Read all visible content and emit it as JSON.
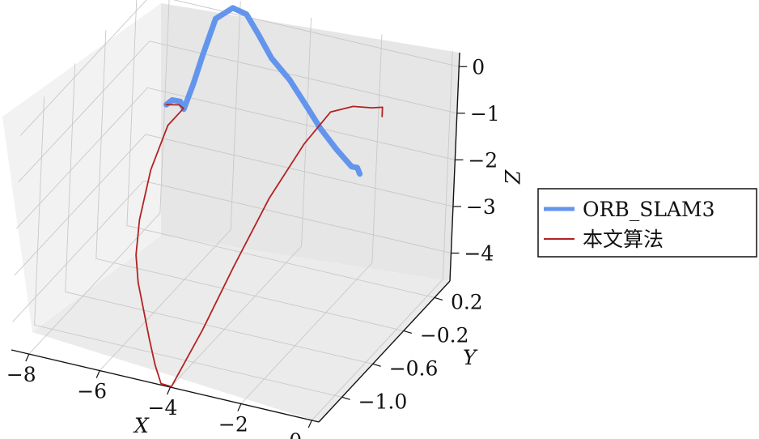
{
  "chart_data": {
    "type": "line3d",
    "xlabel": "X",
    "ylabel": "Y",
    "zlabel": "Z",
    "x_ticks": [
      "−8",
      "−6",
      "−4",
      "−2",
      "0"
    ],
    "y_ticks": [
      "−1.0",
      "−0.6",
      "−0.2",
      "0.2"
    ],
    "z_ticks": [
      "0",
      "−1",
      "−2",
      "−3",
      "−4"
    ],
    "xlim": [
      -8.5,
      0.2
    ],
    "ylim": [
      -1.3,
      0.4
    ],
    "zlim": [
      -4.6,
      0.3
    ],
    "grid": true,
    "legend_position": "right",
    "series": [
      {
        "name": "ORB_SLAM3",
        "color": "#6495ed",
        "points": [
          [
            -7.75,
            0.3,
            -2.05
          ],
          [
            -7.55,
            0.28,
            -1.88
          ],
          [
            -7.3,
            0.27,
            -1.85
          ],
          [
            -7.15,
            0.25,
            -1.95
          ],
          [
            -6.85,
            0.22,
            -1.3
          ],
          [
            -6.55,
            0.19,
            -0.55
          ],
          [
            -6.2,
            0.17,
            0.3
          ],
          [
            -5.65,
            0.13,
            0.7
          ],
          [
            -5.2,
            0.1,
            0.7
          ],
          [
            -4.75,
            0.05,
            0.45
          ],
          [
            -4.2,
            -0.02,
            0.15
          ],
          [
            -3.5,
            -0.1,
            -0.05
          ],
          [
            -2.8,
            -0.2,
            -0.3
          ],
          [
            -2.2,
            -0.28,
            -0.55
          ],
          [
            -1.6,
            -0.35,
            -0.75
          ],
          [
            -1.0,
            -0.42,
            -0.9
          ],
          [
            -0.8,
            -0.44,
            -0.85
          ],
          [
            -0.7,
            -0.45,
            -0.95
          ]
        ]
      },
      {
        "name": "本文算法",
        "color": "#b22222",
        "points": [
          [
            -7.75,
            0.3,
            -2.05
          ],
          [
            -7.35,
            0.28,
            -1.95
          ],
          [
            -7.2,
            0.27,
            -1.98
          ],
          [
            -7.6,
            0.26,
            -2.4
          ],
          [
            -7.9,
            0.2,
            -3.3
          ],
          [
            -7.95,
            0.1,
            -4.2
          ],
          [
            -7.8,
            0.0,
            -4.75
          ],
          [
            -7.4,
            -0.15,
            -5.0
          ],
          [
            -6.9,
            -0.3,
            -5.25
          ],
          [
            -6.4,
            -0.45,
            -5.5
          ],
          [
            -5.9,
            -0.6,
            -5.7
          ],
          [
            -5.4,
            -0.75,
            -5.75
          ],
          [
            -4.9,
            -0.85,
            -5.55
          ],
          [
            -4.2,
            -0.8,
            -4.3
          ],
          [
            -3.6,
            -0.7,
            -3.0
          ],
          [
            -3.0,
            -0.55,
            -1.7
          ],
          [
            -2.4,
            -0.4,
            -0.7
          ],
          [
            -1.9,
            -0.3,
            -0.1
          ],
          [
            -1.4,
            -0.24,
            0.0
          ],
          [
            -0.95,
            -0.2,
            -0.02
          ],
          [
            -0.7,
            -0.18,
            0.0
          ],
          [
            -0.7,
            -0.18,
            -0.2
          ]
        ]
      }
    ]
  }
}
